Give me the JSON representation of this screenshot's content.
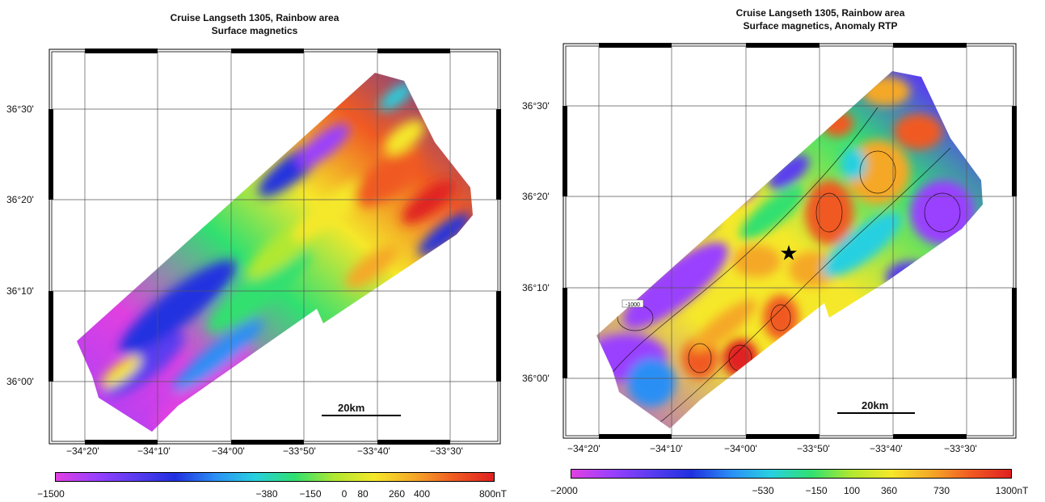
{
  "maps": [
    {
      "title_line1": "Cruise Langseth 1305, Rainbow area",
      "title_line2": "Surface magnetics",
      "lat_labels": [
        "36°30'",
        "36°20'",
        "36°10'",
        "36°00'"
      ],
      "lon_labels": [
        "−34°20'",
        "−34°10'",
        "−34°00'",
        "−33°50'",
        "−33°40'",
        "−33°30'"
      ],
      "scale_bar_label": "20km",
      "colorbar_labels": [
        "−1500",
        "−380",
        "−150",
        "0",
        "80",
        "260",
        "400",
        "800nT"
      ],
      "colorbar_values": [
        -1500,
        -380,
        -150,
        0,
        80,
        260,
        400,
        800
      ]
    },
    {
      "title_line1": "Cruise Langseth 1305, Rainbow area",
      "title_line2": "Surface magnetics, Anomaly RTP",
      "lat_labels": [
        "36°30'",
        "36°20'",
        "36°10'",
        "36°00'"
      ],
      "lon_labels": [
        "−34°20'",
        "−34°10'",
        "−34°00'",
        "−33°50'",
        "−33°40'",
        "−33°30'"
      ],
      "scale_bar_label": "20km",
      "colorbar_labels": [
        "−2000",
        "−530",
        "−150",
        "100",
        "360",
        "730",
        "1300nT"
      ],
      "colorbar_values": [
        -2000,
        -530,
        -150,
        100,
        360,
        730,
        1300
      ],
      "contour_label": "-1000",
      "marker": "star-icon"
    }
  ],
  "colors": {
    "scale_stops": [
      "#e040e0",
      "#9a40ff",
      "#5a3cf0",
      "#2030e0",
      "#2a8ff5",
      "#28d0e0",
      "#30e070",
      "#b0e830",
      "#f5e82a",
      "#f5a828",
      "#f05a22",
      "#e02020"
    ]
  }
}
